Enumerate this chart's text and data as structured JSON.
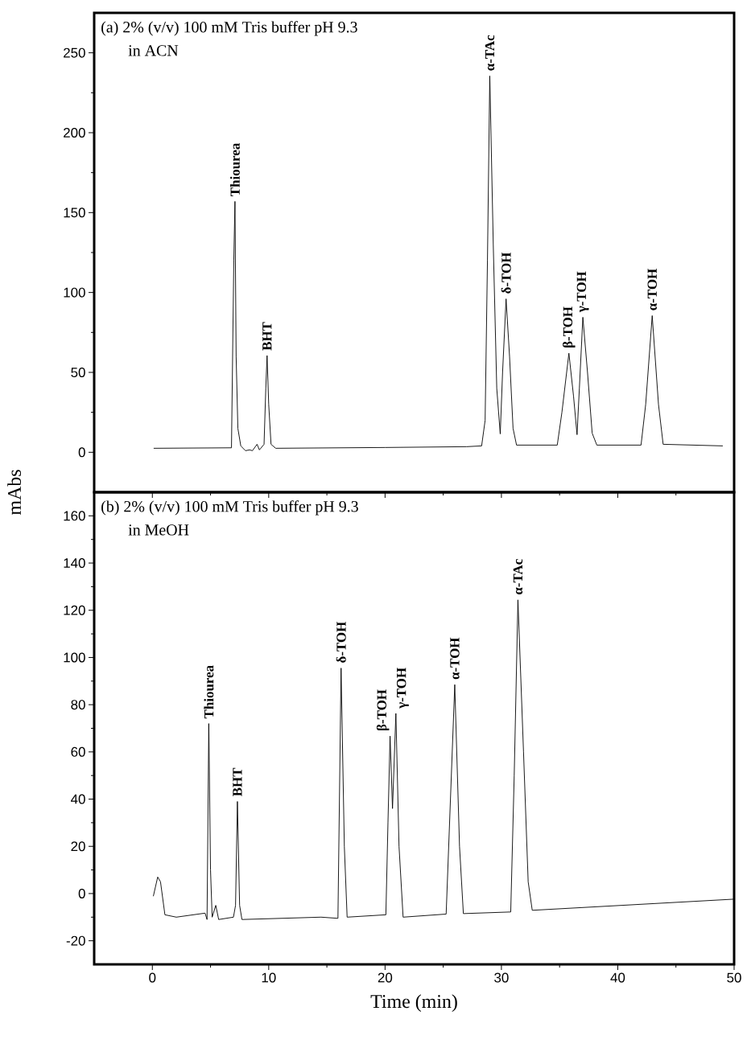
{
  "chart_data": [
    {
      "type": "line",
      "title": "(a) 2% (v/v) 100 mM Tris buffer pH 9.3",
      "subtitle": "in ACN",
      "series": [
        {
          "color": "#000000",
          "x": [
            0.14,
            6.8,
            7.0,
            7.1,
            7.2,
            7.35,
            7.6,
            8.0,
            8.36,
            8.6,
            9.0,
            9.2,
            9.6,
            9.75,
            9.86,
            10.0,
            10.2,
            10.6,
            20,
            27,
            28.3,
            28.6,
            28.8,
            29.0,
            29.3,
            29.6,
            29.9,
            30.1,
            30.4,
            30.7,
            31.0,
            31.3,
            34.8,
            35.2,
            35.8,
            36.2,
            36.5,
            36.7,
            37.0,
            37.4,
            37.8,
            38.2,
            42.0,
            42.4,
            42.96,
            43.5,
            43.9,
            49.0
          ],
          "values": [
            2.5,
            2.8,
            120,
            157,
            60,
            15,
            4,
            1,
            1.5,
            1,
            5,
            1.5,
            5,
            40,
            60.5,
            30,
            5,
            2.5,
            3,
            3.5,
            4,
            20,
            120,
            235.5,
            130,
            40,
            11.5,
            50,
            96,
            60,
            15,
            4.5,
            4.5,
            25,
            62,
            35,
            11,
            40,
            84.5,
            50,
            12,
            4.5,
            4.5,
            30,
            85.5,
            30,
            5,
            4
          ]
        }
      ],
      "xlim": [
        -5,
        50
      ],
      "xticks": [
        0,
        10,
        20,
        30,
        40,
        50
      ],
      "ylim": [
        -25,
        275
      ],
      "yticks": [
        0,
        50,
        100,
        150,
        200,
        250
      ],
      "tick_labels": "y",
      "annotations": [
        {
          "text": "Thiourea",
          "x": 7.1,
          "y": 157
        },
        {
          "text": "BHT",
          "x": 9.86,
          "y": 60.5
        },
        {
          "text": "α-TAc",
          "x": 29.0,
          "y": 235.5
        },
        {
          "text": "δ-TOH",
          "x": 30.4,
          "y": 96
        },
        {
          "text": "β-TOH",
          "x": 35.8,
          "y": 62
        },
        {
          "text": "γ-TOH",
          "x": 37.0,
          "y": 84.5
        },
        {
          "text": "α-TOH",
          "x": 42.96,
          "y": 85.5
        }
      ]
    },
    {
      "type": "line",
      "title": "(b) 2% (v/v) 100 mM Tris buffer pH 9.3",
      "subtitle": "in MeOH",
      "xlabel": "Time (min)",
      "ylabel": "mAbs",
      "series": [
        {
          "color": "#000000",
          "x": [
            0.09,
            0.46,
            0.7,
            1.08,
            2.06,
            4.53,
            4.7,
            4.85,
            5.0,
            5.14,
            5.45,
            5.7,
            6.97,
            7.15,
            7.31,
            7.5,
            7.7,
            14.5,
            15.95,
            16.22,
            16.5,
            16.74,
            20.07,
            20.25,
            20.43,
            20.64,
            20.93,
            21.2,
            21.55,
            25.25,
            25.99,
            26.4,
            26.73,
            30.8,
            31.1,
            31.42,
            31.9,
            32.3,
            32.65,
            49.9
          ],
          "values": [
            -1,
            7,
            5,
            -9,
            -10,
            -8.3,
            -11,
            72,
            10,
            -10,
            -5,
            -11,
            -10,
            -5,
            39,
            -5,
            -11,
            -10,
            -10.5,
            95.5,
            20,
            -10,
            -9,
            30,
            66.7,
            36,
            76.3,
            20,
            -10,
            -8.7,
            88.5,
            20,
            -8.5,
            -7.8,
            50,
            124.4,
            60,
            5,
            -7.1,
            -2.4
          ]
        }
      ],
      "xlim": [
        -5,
        50
      ],
      "xticks": [
        0,
        10,
        20,
        30,
        40,
        50
      ],
      "ylim": [
        -30,
        170
      ],
      "yticks": [
        -20,
        0,
        20,
        40,
        60,
        80,
        100,
        120,
        140,
        160
      ],
      "annotations": [
        {
          "text": "Thiourea",
          "x": 4.85,
          "y": 72
        },
        {
          "text": "BHT",
          "x": 7.31,
          "y": 39
        },
        {
          "text": "δ-TOH",
          "x": 16.22,
          "y": 95.5
        },
        {
          "text": "β-TOH",
          "x": 20.43,
          "y": 66.7
        },
        {
          "text": "γ-TOH",
          "x": 20.93,
          "y": 76.3
        },
        {
          "text": "α-TOH",
          "x": 25.99,
          "y": 88.5
        },
        {
          "text": "α-TAc",
          "x": 31.42,
          "y": 124.4
        }
      ]
    }
  ]
}
